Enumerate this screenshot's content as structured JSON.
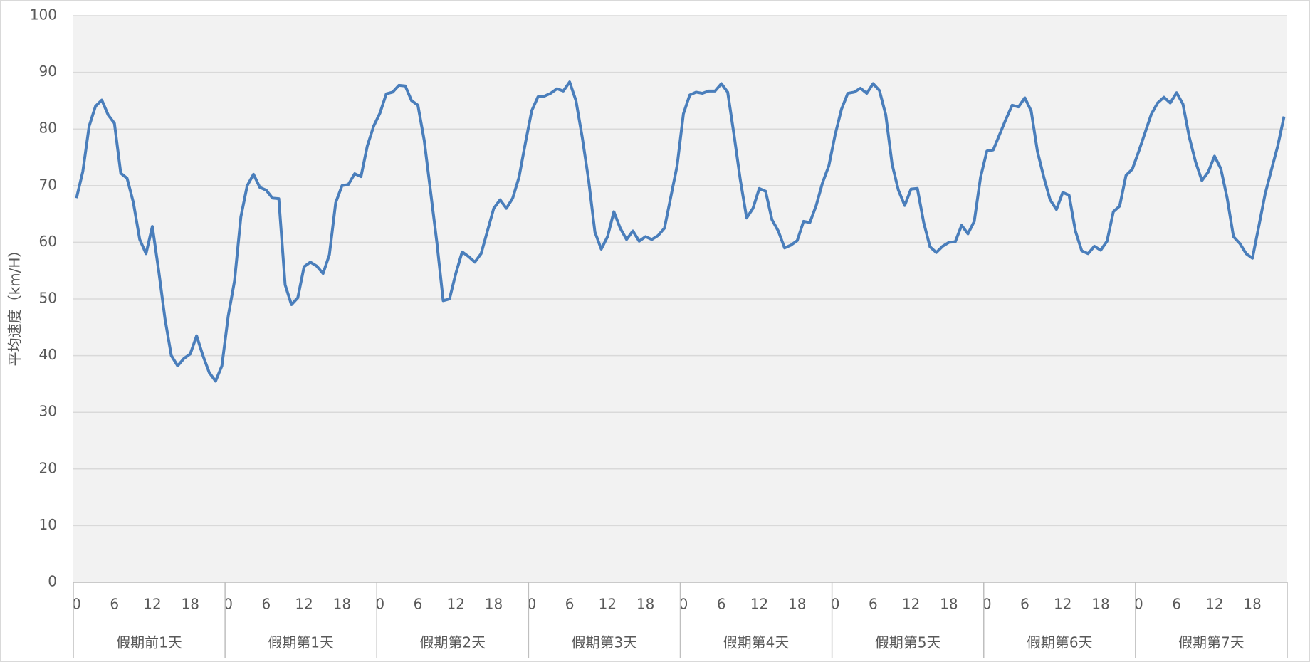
{
  "chart_data": {
    "type": "line",
    "y_label": "平均速度（km/H）",
    "ylim": [
      0,
      100
    ],
    "yticks": [
      0,
      10,
      20,
      30,
      40,
      50,
      60,
      70,
      80,
      90,
      100
    ],
    "grid": true,
    "groups": [
      "假期前1天",
      "假期第1天",
      "假期第2天",
      "假期第3天",
      "假期第4天",
      "假期第5天",
      "假期第6天",
      "假期第7天"
    ],
    "categories": [
      "0",
      null,
      null,
      null,
      null,
      null,
      "6",
      null,
      null,
      null,
      null,
      null,
      "12",
      null,
      null,
      null,
      null,
      null,
      "18",
      null,
      null,
      null,
      null,
      null,
      "0",
      null,
      null,
      null,
      null,
      null,
      "6",
      null,
      null,
      null,
      null,
      null,
      "12",
      null,
      null,
      null,
      null,
      null,
      "18",
      null,
      null,
      null,
      null,
      null,
      "0",
      null,
      null,
      null,
      null,
      null,
      "6",
      null,
      null,
      null,
      null,
      null,
      "12",
      null,
      null,
      null,
      null,
      null,
      "18",
      null,
      null,
      null,
      null,
      null,
      "0",
      null,
      null,
      null,
      null,
      null,
      "6",
      null,
      null,
      null,
      null,
      null,
      "12",
      null,
      null,
      null,
      null,
      null,
      "18",
      null,
      null,
      null,
      null,
      null,
      "0",
      null,
      null,
      null,
      null,
      null,
      "6",
      null,
      null,
      null,
      null,
      null,
      "12",
      null,
      null,
      null,
      null,
      null,
      "18",
      null,
      null,
      null,
      null,
      null,
      "0",
      null,
      null,
      null,
      null,
      null,
      "6",
      null,
      null,
      null,
      null,
      null,
      "12",
      null,
      null,
      null,
      null,
      null,
      "18",
      null,
      null,
      null,
      null,
      null,
      "0",
      null,
      null,
      null,
      null,
      null,
      "6",
      null,
      null,
      null,
      null,
      null,
      "12",
      null,
      null,
      null,
      null,
      null,
      "18",
      null,
      null,
      null,
      null,
      null,
      "0",
      null,
      null,
      null,
      null,
      null,
      "6",
      null,
      null,
      null,
      null,
      null,
      "12",
      null,
      null,
      null,
      null,
      null,
      "18",
      null,
      null,
      null,
      null,
      null
    ],
    "series": [
      {
        "color": "#4a7ebb",
        "values": [
          67.8,
          72.5,
          80.5,
          84,
          85.1,
          82.5,
          81,
          72.2,
          71.3,
          67,
          60.5,
          58,
          62.8,
          55,
          46.5,
          40,
          38.2,
          39.5,
          40.3,
          43.5,
          40,
          37,
          35.5,
          38.2,
          47,
          53.2,
          64.5,
          70,
          72,
          69.7,
          69.2,
          67.8,
          67.7,
          52.5,
          49,
          50.2,
          55.7,
          56.5,
          55.8,
          54.5,
          57.8,
          67,
          70,
          70.2,
          72.1,
          71.6,
          77,
          80.5,
          82.8,
          86.2,
          86.5,
          87.7,
          87.6,
          85,
          84.2,
          78,
          69,
          60,
          49.7,
          50,
          54.5,
          58.3,
          57.5,
          56.5,
          58,
          62,
          66,
          67.5,
          66,
          67.8,
          71.5,
          77.5,
          83.2,
          85.7,
          85.8,
          86.3,
          87.1,
          86.7,
          88.3,
          85,
          78.5,
          71,
          61.8,
          58.8,
          61,
          65.4,
          62.5,
          60.5,
          62,
          60.2,
          61,
          60.5,
          61.2,
          62.5,
          68,
          73.5,
          82.7,
          86,
          86.5,
          86.3,
          86.7,
          86.7,
          88,
          86.5,
          79,
          71,
          64.3,
          66,
          69.5,
          69,
          64,
          62,
          59,
          59.5,
          60.3,
          63.7,
          63.5,
          66.5,
          70.5,
          73.5,
          79,
          83.5,
          86.3,
          86.5,
          87.2,
          86.3,
          88,
          86.8,
          82.5,
          73.8,
          69.2,
          66.5,
          69.4,
          69.5,
          63.5,
          59.2,
          58.2,
          59.3,
          60,
          60.1,
          63,
          61.5,
          63.7,
          71.5,
          76.1,
          76.3,
          79,
          81.7,
          84.2,
          83.9,
          85.5,
          83.2,
          76,
          71.5,
          67.5,
          65.8,
          68.8,
          68.3,
          62,
          58.5,
          58,
          59.3,
          58.6,
          60.2,
          65.4,
          66.4,
          71.8,
          72.9,
          76,
          79.3,
          82.6,
          84.6,
          85.6,
          84.6,
          86.4,
          84.4,
          78.6,
          74.2,
          70.9,
          72.4,
          75.2,
          73,
          67.8,
          61,
          59.8,
          58,
          57.2,
          62.8,
          68.5,
          72.8,
          77,
          82.2
        ]
      }
    ]
  }
}
